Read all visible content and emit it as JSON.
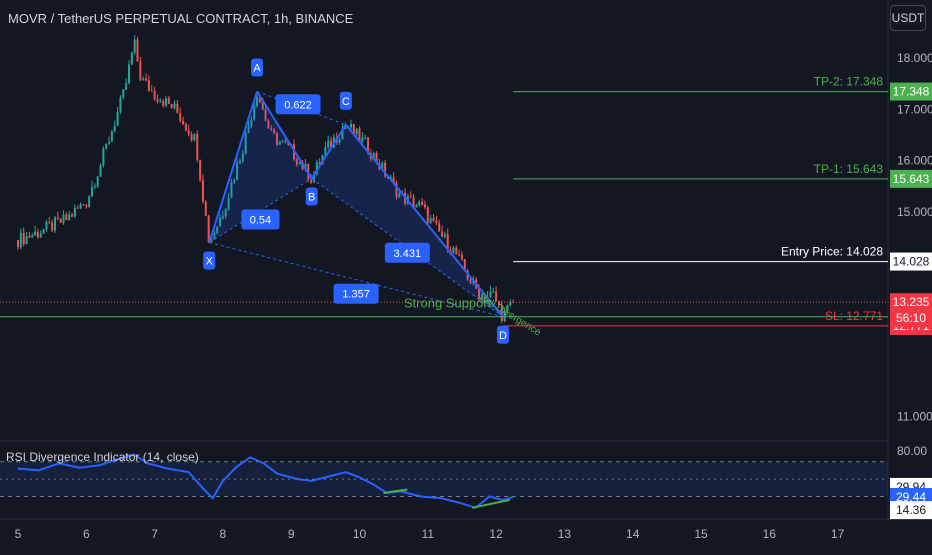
{
  "header": {
    "title": "MOVR / TetherUS PERPETUAL CONTRACT, 1h, BINANCE",
    "currency": "USDT"
  },
  "rsi": {
    "title": "RSI Divergence Indicator (14, close)",
    "levels": [
      "80.00",
      "29.94",
      "29.44",
      "14.36"
    ]
  },
  "colors": {
    "background": "#131722",
    "up": "#26a69a",
    "down": "#ef5350",
    "pattern": "#2962ff",
    "tp": "#4caf50",
    "sl": "#f23645",
    "rsi_line": "#2962ff"
  },
  "chart_data": {
    "type": "candlestick",
    "title": "MOVR / TetherUS PERPETUAL CONTRACT, 1h, BINANCE",
    "y_axis_ticks": [
      "18.000",
      "17.000",
      "16.000",
      "15.000",
      "11.000"
    ],
    "x_axis_ticks": [
      "5",
      "6",
      "7",
      "8",
      "9",
      "10",
      "11",
      "12",
      "13",
      "14",
      "15",
      "16",
      "17"
    ],
    "ylim": [
      10.5,
      18.8
    ],
    "price_path": [
      [
        5.0,
        14.45
      ],
      [
        5.3,
        14.6
      ],
      [
        5.7,
        14.85
      ],
      [
        6.0,
        15.2
      ],
      [
        6.2,
        15.9
      ],
      [
        6.4,
        16.7
      ],
      [
        6.55,
        17.3
      ],
      [
        6.7,
        18.3
      ],
      [
        6.8,
        17.6
      ],
      [
        7.0,
        17.3
      ],
      [
        7.3,
        17.0
      ],
      [
        7.6,
        16.4
      ],
      [
        7.8,
        14.4
      ],
      [
        8.0,
        15.0
      ],
      [
        8.3,
        16.3
      ],
      [
        8.5,
        17.35
      ],
      [
        8.7,
        16.5
      ],
      [
        9.0,
        16.2
      ],
      [
        9.3,
        15.65
      ],
      [
        9.5,
        16.2
      ],
      [
        9.8,
        16.7
      ],
      [
        10.1,
        16.3
      ],
      [
        10.3,
        15.9
      ],
      [
        10.6,
        15.3
      ],
      [
        10.9,
        15.1
      ],
      [
        11.1,
        14.7
      ],
      [
        11.4,
        14.2
      ],
      [
        11.6,
        13.7
      ],
      [
        11.8,
        13.3
      ],
      [
        11.95,
        13.4
      ],
      [
        12.1,
        12.95
      ],
      [
        12.25,
        13.235
      ]
    ],
    "harmonic_pattern": {
      "points": [
        {
          "label": "X",
          "x": 7.8,
          "y": 14.4
        },
        {
          "label": "A",
          "x": 8.5,
          "y": 17.35
        },
        {
          "label": "B",
          "x": 9.3,
          "y": 15.65
        },
        {
          "label": "C",
          "x": 9.8,
          "y": 16.7
        },
        {
          "label": "D",
          "x": 12.1,
          "y": 12.95
        }
      ],
      "ratios": [
        {
          "text": "0.622",
          "x": 9.1,
          "y": 17.1
        },
        {
          "text": "0.54",
          "x": 8.55,
          "y": 14.85
        },
        {
          "text": "3.431",
          "x": 10.7,
          "y": 14.2
        },
        {
          "text": "1.357",
          "x": 9.95,
          "y": 13.4
        }
      ]
    },
    "levels": [
      {
        "name": "tp2",
        "label": "TP-2: 17.348",
        "badge": "17.348",
        "value": 17.348,
        "color": "#4caf50",
        "x_start": 12.25
      },
      {
        "name": "tp1",
        "label": "TP-1: 15.643",
        "badge": "15.643",
        "value": 15.643,
        "color": "#4caf50",
        "x_start": 12.25
      },
      {
        "name": "entry",
        "label": "Entry Price: 14.028",
        "badge": "14.028",
        "value": 14.028,
        "color": "#ffffff",
        "x_start": 12.25
      },
      {
        "name": "sl",
        "label": "SL: 12.771",
        "badge": "12.771",
        "value": 12.771,
        "color": "#f23645",
        "x_start": 12.1
      }
    ],
    "current_price": {
      "value": 13.235,
      "badge": "13.235",
      "countdown": "56:10"
    },
    "support": {
      "label": "Strong Support",
      "value": 12.951,
      "badge": "12.951"
    },
    "divergence_label": "Bull Divergence",
    "rsi_series": [
      [
        5.0,
        62
      ],
      [
        5.3,
        60
      ],
      [
        5.6,
        68
      ],
      [
        5.9,
        63
      ],
      [
        6.2,
        66
      ],
      [
        6.5,
        74
      ],
      [
        6.7,
        78
      ],
      [
        6.9,
        68
      ],
      [
        7.2,
        62
      ],
      [
        7.5,
        58
      ],
      [
        7.7,
        40
      ],
      [
        7.85,
        28
      ],
      [
        8.0,
        48
      ],
      [
        8.2,
        64
      ],
      [
        8.4,
        75
      ],
      [
        8.6,
        68
      ],
      [
        8.8,
        56
      ],
      [
        9.1,
        50
      ],
      [
        9.3,
        48
      ],
      [
        9.6,
        54
      ],
      [
        9.8,
        58
      ],
      [
        10.0,
        52
      ],
      [
        10.2,
        44
      ],
      [
        10.4,
        34
      ],
      [
        10.6,
        36
      ],
      [
        10.9,
        30
      ],
      [
        11.2,
        28
      ],
      [
        11.5,
        22
      ],
      [
        11.7,
        17
      ],
      [
        11.9,
        30
      ],
      [
        12.1,
        26
      ],
      [
        12.25,
        29.44
      ]
    ],
    "rsi_divergence_segments": [
      [
        [
          10.35,
          34
        ],
        [
          10.7,
          38
        ]
      ],
      [
        [
          11.65,
          17
        ],
        [
          12.2,
          26
        ]
      ]
    ]
  }
}
